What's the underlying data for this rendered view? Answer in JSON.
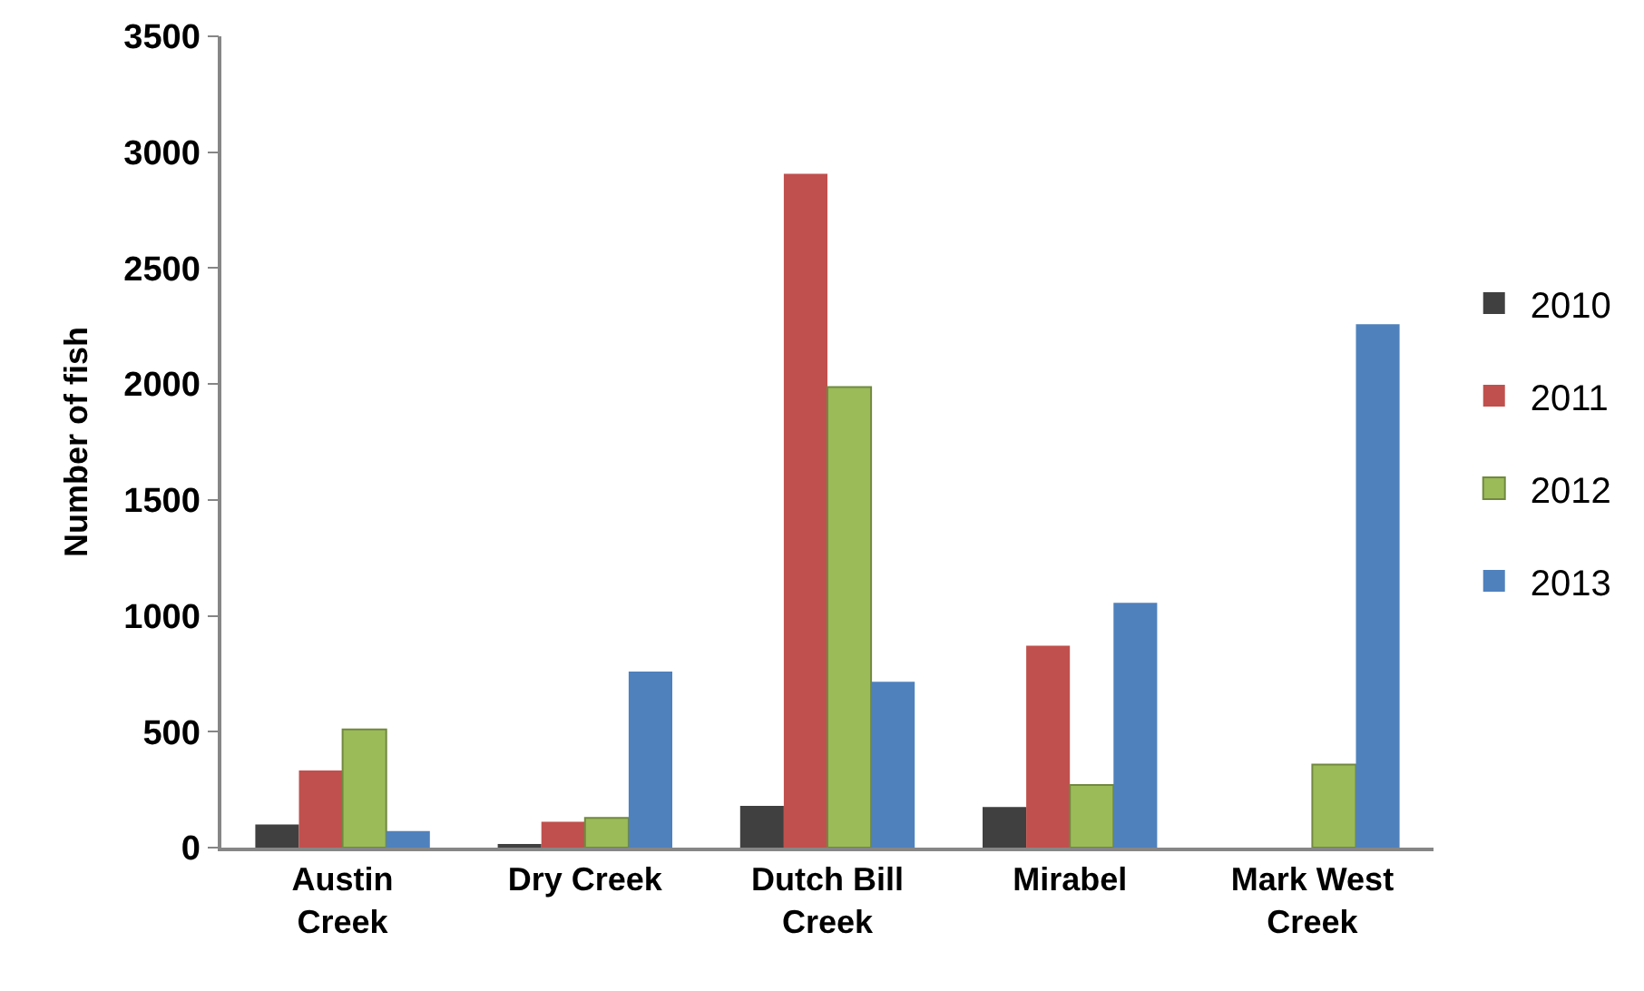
{
  "chart_data": {
    "type": "bar",
    "ylabel": "Number of fish",
    "categories": [
      "Austin\nCreek",
      "Dry Creek",
      "Dutch Bill\nCreek",
      "Mirabel",
      "Mark West\nCreek"
    ],
    "series": [
      {
        "name": "2010",
        "color": "#404040",
        "values": [
          100,
          16,
          180,
          175,
          null
        ]
      },
      {
        "name": "2011",
        "color": "#c0504d",
        "values": [
          333,
          112,
          2907,
          871,
          null
        ]
      },
      {
        "name": "2012",
        "color": "#9bbb59",
        "values": [
          510,
          128,
          1987,
          270,
          358
        ]
      },
      {
        "name": "2013",
        "color": "#4f81bd",
        "values": [
          71,
          759,
          715,
          1056,
          2258
        ]
      }
    ],
    "ylim": [
      0,
      3500
    ],
    "yticks": [
      0,
      500,
      1000,
      1500,
      2000,
      2500,
      3000,
      3500
    ],
    "legend": "right"
  }
}
